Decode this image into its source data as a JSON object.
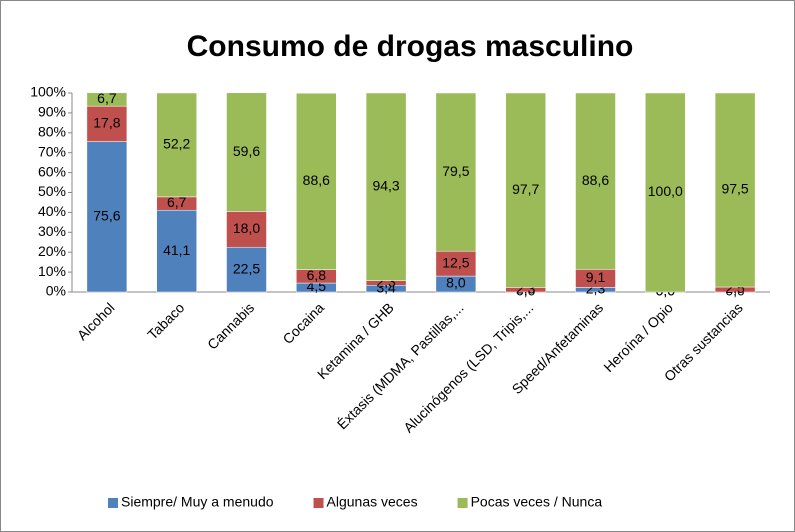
{
  "chart_data": {
    "type": "bar",
    "stacked": true,
    "title": "Consumo de drogas masculino",
    "categories": [
      "Alcohol",
      "Tabaco",
      "Cannabis",
      "Cocaina",
      "Ketamina / GHB",
      "Éxtasis (MDMA, Pastillas,...",
      "Alucinógenos (LSD, Tripis,...",
      "Speed/Anfetaminas",
      "Heroína / Opio",
      "Otras sustancias"
    ],
    "series": [
      {
        "name": "Siempre/ Muy a menudo",
        "color": "#4f81bd",
        "values": [
          75.6,
          41.1,
          22.5,
          4.5,
          3.4,
          8.0,
          0.0,
          2.3,
          0.0,
          0.0
        ],
        "value_labels": [
          "75,6",
          "41,1",
          "22,5",
          "4,5",
          "3,4",
          "8,0",
          "0,0",
          "2,3",
          "0,0",
          "0,0"
        ]
      },
      {
        "name": "Algunas veces",
        "color": "#c0504d",
        "values": [
          17.8,
          6.7,
          18.0,
          6.8,
          2.3,
          12.5,
          2.3,
          9.1,
          0.0,
          2.5
        ],
        "value_labels": [
          "17,8",
          "6,7",
          "18,0",
          "6,8",
          "2,3",
          "12,5",
          "2,3",
          "9,1",
          "0,0",
          "2,5"
        ]
      },
      {
        "name": "Pocas veces / Nunca",
        "color": "#9bbb59",
        "values": [
          6.7,
          52.2,
          59.6,
          88.6,
          94.3,
          79.5,
          97.7,
          88.6,
          100.0,
          97.5
        ],
        "value_labels": [
          "6,7",
          "52,2",
          "59,6",
          "88,6",
          "94,3",
          "79,5",
          "97,7",
          "88,6",
          "100,0",
          "97,5"
        ]
      }
    ],
    "ylim": [
      0,
      100
    ],
    "yticks": [
      {
        "value": 0,
        "label": "0%"
      },
      {
        "value": 10,
        "label": "10%"
      },
      {
        "value": 20,
        "label": "20%"
      },
      {
        "value": 30,
        "label": "30%"
      },
      {
        "value": 40,
        "label": "40%"
      },
      {
        "value": 50,
        "label": "50%"
      },
      {
        "value": 60,
        "label": "60%"
      },
      {
        "value": 70,
        "label": "70%"
      },
      {
        "value": 80,
        "label": "80%"
      },
      {
        "value": 90,
        "label": "90%"
      },
      {
        "value": 100,
        "label": "100%"
      }
    ],
    "legend": "bottom"
  }
}
